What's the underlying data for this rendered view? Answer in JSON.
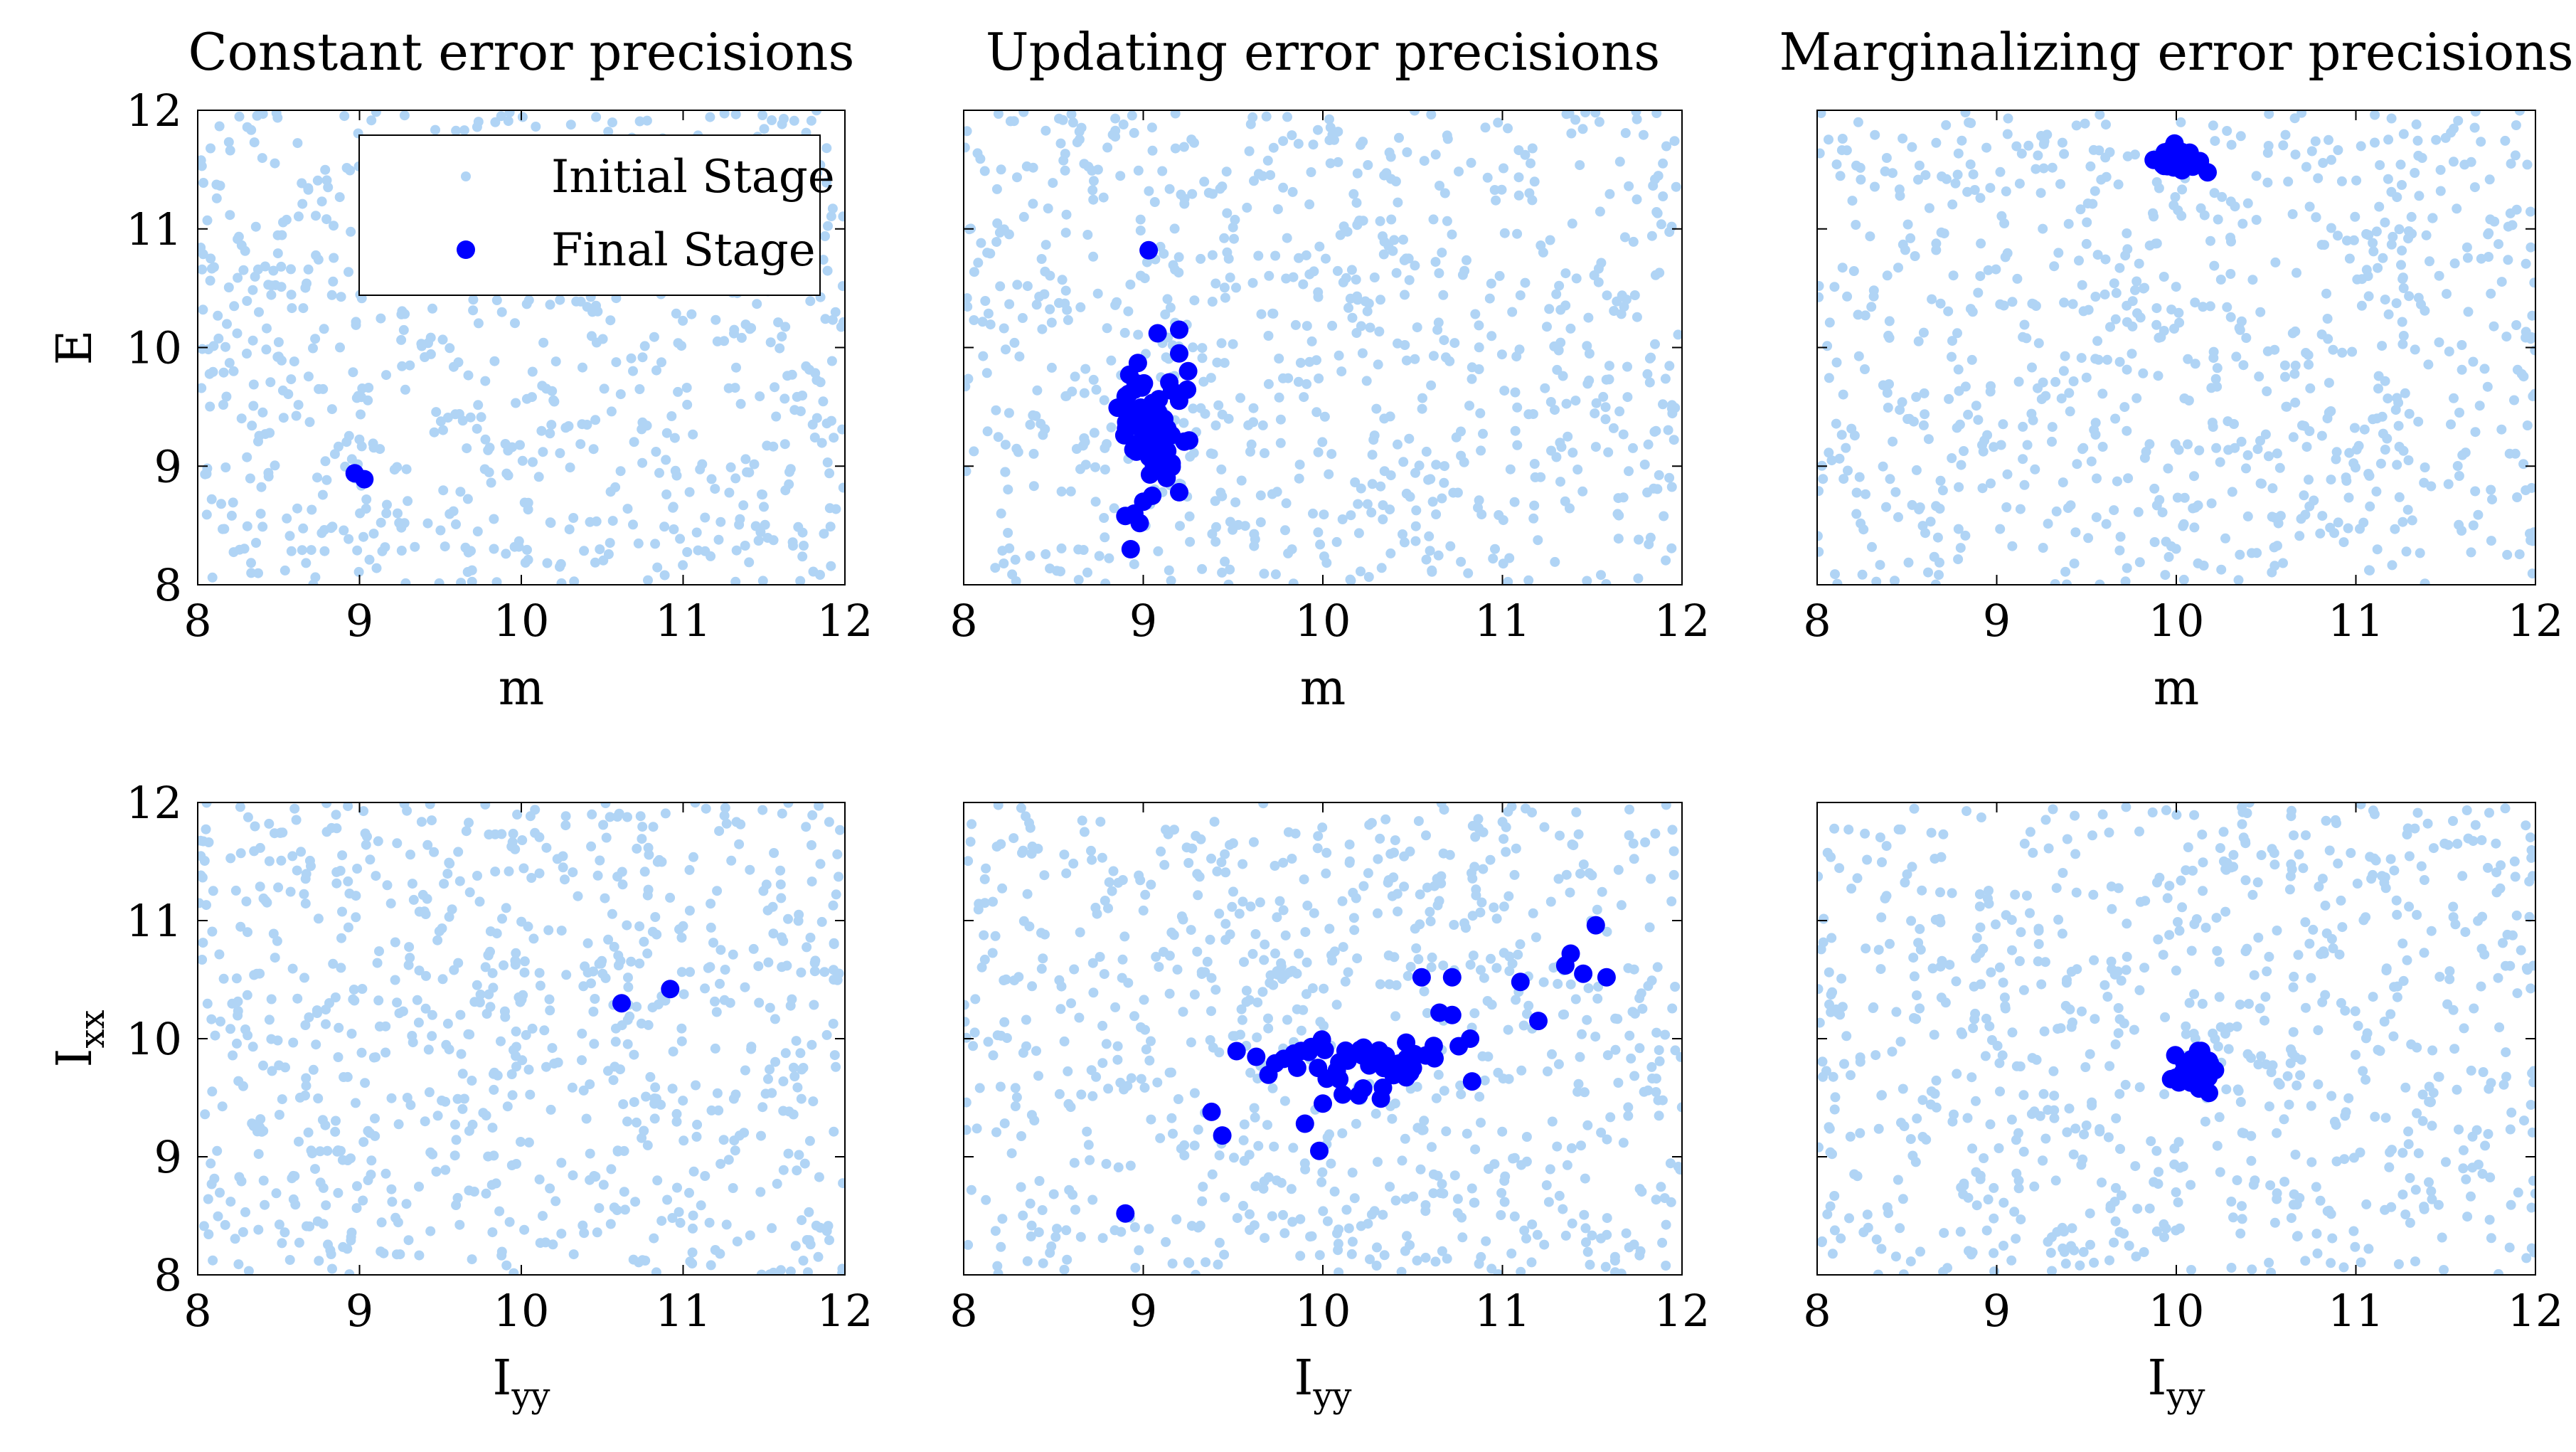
{
  "chart_data": [
    {
      "type": "scatter",
      "title": "Constant error precisions",
      "xlabel": "m",
      "ylabel": "E",
      "xlim": [
        8,
        12
      ],
      "ylim": [
        8,
        12
      ],
      "xticks": [
        "8",
        "9",
        "10",
        "11",
        "12"
      ],
      "yticks": [
        "8",
        "9",
        "10",
        "11",
        "12"
      ],
      "colors": {
        "initial": "#b0d4f5",
        "final": "#0000ff"
      },
      "initial_count": 800,
      "legend": {
        "position": "top-right",
        "entries": [
          "Initial Stage",
          "Final Stage"
        ]
      },
      "final_points": [
        [
          8.97,
          8.94
        ],
        [
          9.03,
          8.89
        ]
      ],
      "final_cluster": null
    },
    {
      "type": "scatter",
      "title": "Updating error precisions",
      "xlabel": "m",
      "ylabel": "",
      "xlim": [
        8,
        12
      ],
      "ylim": [
        8,
        12
      ],
      "xticks": [
        "8",
        "9",
        "10",
        "11",
        "12"
      ],
      "yticks": [],
      "colors": {
        "initial": "#b0d4f5",
        "final": "#0000ff"
      },
      "initial_count": 800,
      "legend": null,
      "final_points": [
        [
          9.03,
          10.82
        ],
        [
          8.93,
          8.3
        ],
        [
          9.2,
          10.15
        ],
        [
          9.08,
          10.12
        ],
        [
          9.2,
          9.95
        ],
        [
          8.97,
          9.87
        ],
        [
          9.25,
          9.8
        ],
        [
          9.2,
          8.78
        ],
        [
          9.13,
          8.9
        ],
        [
          8.95,
          8.6
        ],
        [
          8.9,
          8.58
        ],
        [
          8.98,
          8.52
        ],
        [
          9.0,
          8.7
        ],
        [
          9.05,
          8.75
        ]
      ],
      "final_cluster": {
        "cx": 9.02,
        "cy": 9.38,
        "sx": 0.1,
        "sy": 0.22,
        "n": 60
      }
    },
    {
      "type": "scatter",
      "title": "Marginalizing error precisions",
      "xlabel": "m",
      "ylabel": "",
      "xlim": [
        8,
        12
      ],
      "ylim": [
        8,
        12
      ],
      "xticks": [
        "8",
        "9",
        "10",
        "11",
        "12"
      ],
      "yticks": [],
      "colors": {
        "initial": "#b0d4f5",
        "final": "#0000ff"
      },
      "initial_count": 800,
      "legend": null,
      "final_points": [],
      "final_cluster": {
        "cx": 10.0,
        "cy": 11.56,
        "sx": 0.06,
        "sy": 0.05,
        "n": 40
      }
    },
    {
      "type": "scatter",
      "title": "",
      "xlabel": "Iyy",
      "ylabel": "Ixx",
      "xlim": [
        8,
        12
      ],
      "ylim": [
        8,
        12
      ],
      "xticks": [
        "8",
        "9",
        "10",
        "11",
        "12"
      ],
      "yticks": [
        "8",
        "9",
        "10",
        "11",
        "12"
      ],
      "colors": {
        "initial": "#b0d4f5",
        "final": "#0000ff"
      },
      "initial_count": 800,
      "legend": null,
      "final_points": [
        [
          10.62,
          10.3
        ],
        [
          10.92,
          10.42
        ]
      ],
      "final_cluster": null
    },
    {
      "type": "scatter",
      "title": "",
      "xlabel": "Iyy",
      "ylabel": "",
      "xlim": [
        8,
        12
      ],
      "ylim": [
        8,
        12
      ],
      "xticks": [
        "8",
        "9",
        "10",
        "11",
        "12"
      ],
      "yticks": [],
      "colors": {
        "initial": "#b0d4f5",
        "final": "#0000ff"
      },
      "initial_count": 800,
      "legend": null,
      "final_points": [
        [
          8.9,
          8.52
        ],
        [
          9.38,
          9.38
        ],
        [
          9.44,
          9.18
        ],
        [
          9.9,
          9.28
        ],
        [
          9.98,
          9.05
        ],
        [
          10.0,
          9.45
        ],
        [
          10.2,
          9.52
        ],
        [
          10.55,
          10.52
        ],
        [
          10.72,
          10.52
        ],
        [
          10.65,
          10.22
        ],
        [
          10.72,
          10.2
        ],
        [
          10.82,
          10.0
        ],
        [
          11.52,
          10.96
        ],
        [
          11.58,
          10.52
        ],
        [
          11.2,
          10.15
        ],
        [
          11.35,
          10.62
        ],
        [
          11.1,
          10.48
        ],
        [
          11.38,
          10.72
        ],
        [
          11.45,
          10.55
        ]
      ],
      "final_cluster": {
        "cx": 10.15,
        "cy": 9.78,
        "sx": 0.28,
        "sy": 0.12,
        "n": 50
      }
    },
    {
      "type": "scatter",
      "title": "",
      "xlabel": "Iyy",
      "ylabel": "",
      "xlim": [
        8,
        12
      ],
      "ylim": [
        8,
        12
      ],
      "xticks": [
        "8",
        "9",
        "10",
        "11",
        "12"
      ],
      "yticks": [],
      "colors": {
        "initial": "#b0d4f5",
        "final": "#0000ff"
      },
      "initial_count": 800,
      "legend": null,
      "final_points": [],
      "final_cluster": {
        "cx": 10.12,
        "cy": 9.72,
        "sx": 0.06,
        "sy": 0.08,
        "n": 45
      }
    }
  ]
}
